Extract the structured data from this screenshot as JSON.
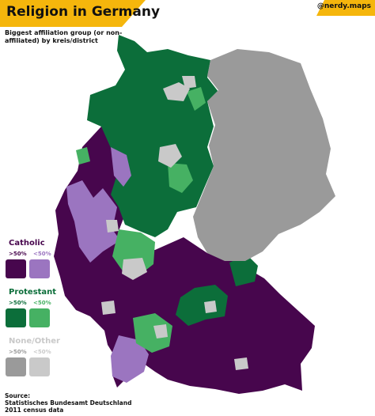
{
  "header": {
    "title": "Religion in Germany",
    "credit": "@nerdy.maps",
    "subtitle": "Biggest affiliation group (or non-affiliated) by kreis/district"
  },
  "colors": {
    "banner": "#f5b60c",
    "catholic_majority": "#47064d",
    "catholic_plurality": "#9b75c0",
    "protestant_majority": "#0c6e3a",
    "protestant_plurality": "#46b163",
    "none_majority": "#9a9a9a",
    "none_plurality": "#c9c9c9"
  },
  "legend": {
    "catholic": {
      "title": "Catholic",
      "majority_label": ">50%",
      "plurality_label": "<50%"
    },
    "protestant": {
      "title": "Protestant",
      "majority_label": ">50%",
      "plurality_label": "<50%"
    },
    "none": {
      "title": "None/Other",
      "majority_label": ">50%",
      "plurality_label": "<50%"
    }
  },
  "source": {
    "label": "Source:",
    "line1": "Statistisches Bundesamt Deutschland",
    "line2": "2011 census data"
  }
}
